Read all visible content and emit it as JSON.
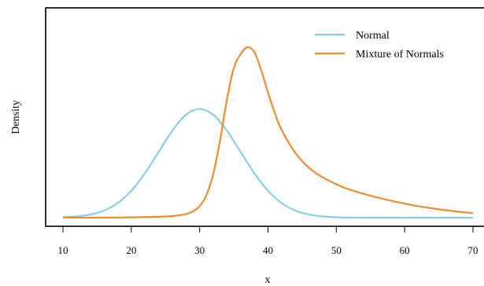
{
  "chart_data": {
    "type": "line",
    "title": "",
    "xlabel": "x",
    "ylabel": "Density",
    "xlim": [
      8.5,
      70
    ],
    "xticks": [
      10,
      20,
      30,
      40,
      50,
      60,
      70
    ],
    "yticks_shown": false,
    "grid": false,
    "legend_position": "top-right",
    "series": [
      {
        "name": "Normal",
        "color": "#87CEEB",
        "x": [
          10,
          12,
          14,
          16,
          18,
          20,
          22,
          24,
          26,
          28,
          30,
          32,
          34,
          35,
          36,
          38,
          40,
          42,
          44,
          46,
          48,
          50,
          52,
          54,
          56,
          58,
          60,
          62,
          64,
          66,
          68,
          70
        ],
        "y": [
          0.0004,
          0.0012,
          0.0031,
          0.0071,
          0.0146,
          0.027,
          0.0446,
          0.0659,
          0.0872,
          0.1031,
          0.109,
          0.1031,
          0.0872,
          0.0766,
          0.0659,
          0.0446,
          0.027,
          0.0146,
          0.0071,
          0.0031,
          0.0012,
          0.0004,
          0.0001,
          3e-05,
          1e-05,
          0,
          0,
          0,
          0,
          0,
          0,
          0
        ]
      },
      {
        "name": "Mixture of Normals",
        "color": "#F28A30",
        "x": [
          10,
          15,
          20,
          24,
          26,
          28,
          29,
          30,
          31,
          32,
          33,
          34,
          35,
          36,
          37,
          38,
          39,
          40,
          41,
          42,
          44,
          46,
          48,
          50,
          52,
          55,
          58,
          62,
          66,
          70
        ],
        "y": [
          0,
          5e-05,
          0.0003,
          0.0009,
          0.0016,
          0.0036,
          0.0062,
          0.0115,
          0.0228,
          0.044,
          0.078,
          0.1185,
          0.15,
          0.164,
          0.171,
          0.166,
          0.148,
          0.1255,
          0.105,
          0.088,
          0.065,
          0.05,
          0.0405,
          0.0335,
          0.028,
          0.022,
          0.017,
          0.0115,
          0.0075,
          0.0045
        ]
      }
    ]
  }
}
